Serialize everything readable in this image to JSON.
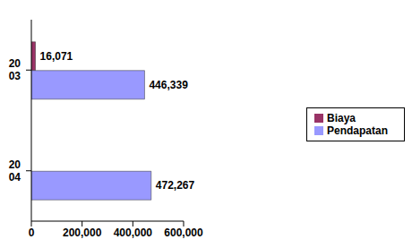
{
  "chart_data": {
    "type": "bar",
    "orientation": "horizontal",
    "categories": [
      "2003",
      "2004"
    ],
    "series": [
      {
        "name": "Biaya",
        "color": "#993366",
        "values": [
          16071,
          null
        ],
        "value_labels": [
          "16,071",
          null
        ]
      },
      {
        "name": "Pendapatan",
        "color": "#9999ff",
        "values": [
          446339,
          472267
        ],
        "value_labels": [
          "446,339",
          "472,267"
        ]
      }
    ],
    "xlim": [
      0,
      600000
    ],
    "xticks": [
      0,
      {
        "value": 200000,
        "label": "200,000"
      },
      {
        "value": 400000,
        "label": "400,000"
      },
      {
        "value": 600000,
        "label": "600,000"
      }
    ],
    "data_labels": true,
    "legend": "right",
    "grid": false
  }
}
